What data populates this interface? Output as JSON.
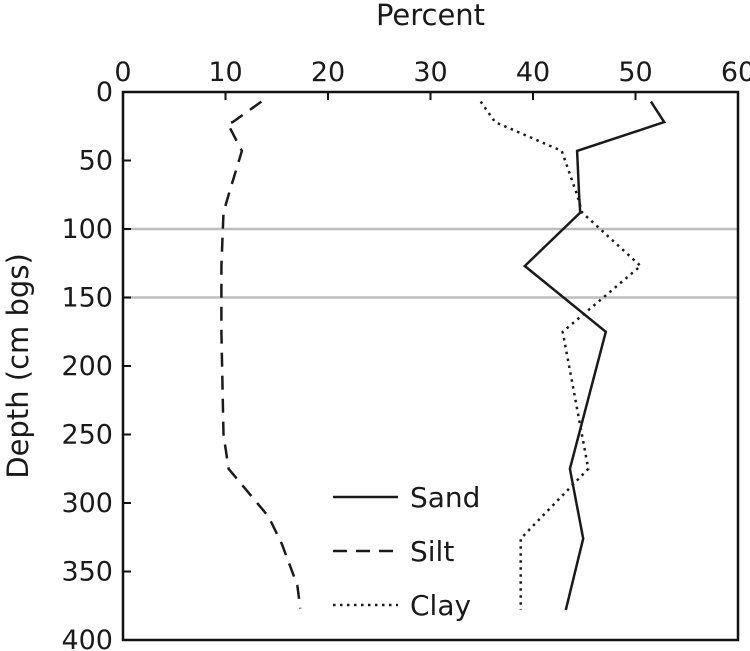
{
  "chart_data": {
    "type": "line",
    "title": "",
    "xlabel": "Percent",
    "ylabel": "Depth (cm bgs)",
    "xlim": [
      0,
      60
    ],
    "ylim": [
      0,
      400
    ],
    "y_inverted": true,
    "x_axis_position": "top",
    "x_ticks": [
      0,
      10,
      20,
      30,
      40,
      50,
      60
    ],
    "y_ticks": [
      0,
      50,
      100,
      150,
      200,
      250,
      300,
      350,
      400
    ],
    "reference_lines_y": [
      100,
      150
    ],
    "grid": false,
    "legend_position": "bottom-center",
    "series": [
      {
        "name": "Sand",
        "style": "solid",
        "points": [
          [
            51.5,
            7
          ],
          [
            52.8,
            22
          ],
          [
            44.3,
            43
          ],
          [
            44.5,
            75
          ],
          [
            44.6,
            88
          ],
          [
            39.2,
            127
          ],
          [
            47.1,
            175
          ],
          [
            43.6,
            275
          ],
          [
            44.9,
            326
          ],
          [
            43.2,
            378
          ]
        ]
      },
      {
        "name": "Silt",
        "style": "dashed",
        "points": [
          [
            13.5,
            7
          ],
          [
            10.7,
            22
          ],
          [
            10.2,
            23
          ],
          [
            11.6,
            43
          ],
          [
            10.3,
            75
          ],
          [
            9.8,
            88
          ],
          [
            9.6,
            127
          ],
          [
            9.6,
            175
          ],
          [
            9.8,
            250
          ],
          [
            10.3,
            275
          ],
          [
            14.2,
            310
          ],
          [
            15.5,
            330
          ],
          [
            17.0,
            360
          ],
          [
            17.3,
            377
          ]
        ]
      },
      {
        "name": "Clay",
        "style": "dotted",
        "points": [
          [
            34.9,
            7
          ],
          [
            36.3,
            22
          ],
          [
            42.8,
            43
          ],
          [
            44.3,
            75
          ],
          [
            44.8,
            88
          ],
          [
            50.5,
            127
          ],
          [
            42.9,
            175
          ],
          [
            45.4,
            275
          ],
          [
            38.8,
            326
          ],
          [
            38.8,
            378
          ]
        ]
      }
    ]
  }
}
